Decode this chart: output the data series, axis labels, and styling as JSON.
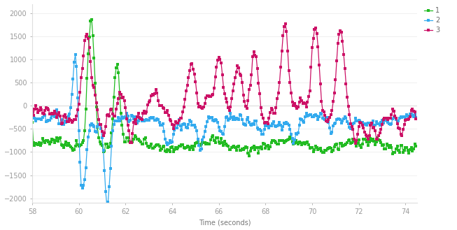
{
  "title": "",
  "xlabel": "Time (seconds)",
  "ylabel": "",
  "xlim": [
    58,
    74.5
  ],
  "ylim": [
    -2100,
    2200
  ],
  "yticks": [
    -2000,
    -1500,
    -1000,
    -500,
    0,
    500,
    1000,
    1500,
    2000
  ],
  "xticks": [
    58,
    60,
    62,
    64,
    66,
    68,
    70,
    72,
    74
  ],
  "legend_labels": [
    "1",
    "2",
    "3"
  ],
  "line_colors": [
    "#22bb22",
    "#33aaee",
    "#cc1166"
  ],
  "background_color": "#ffffff",
  "figsize": [
    6.53,
    3.29
  ],
  "dpi": 100
}
